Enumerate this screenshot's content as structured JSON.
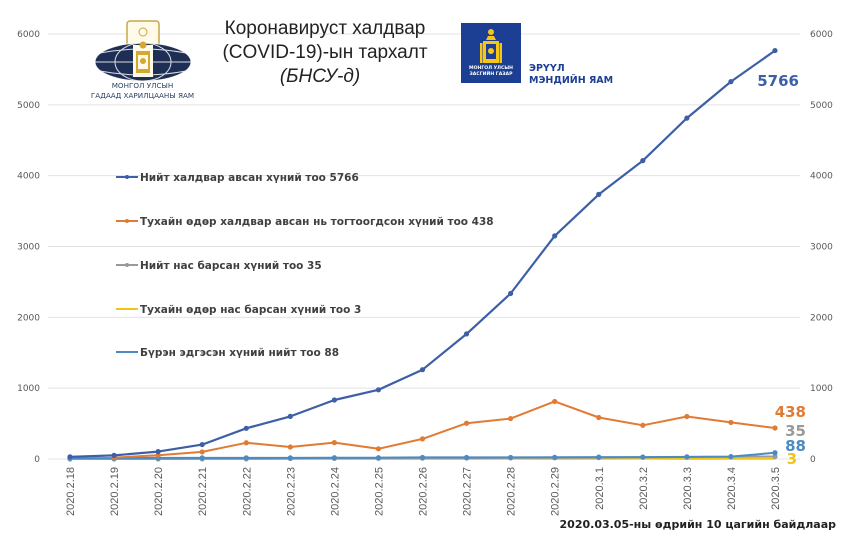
{
  "header": {
    "title_line1": "Коронавируст халдвар",
    "title_line2": "(COVID-19)-ын тархалт",
    "title_line3": "(БНСУ-д)",
    "logo_left": {
      "line1": "МОНГОЛ УЛСЫН",
      "line2": "ГАДААД ХАРИЛЦААНЫ ЯАМ"
    },
    "logo_right": {
      "box_line1": "МОНГОЛ УЛСЫН",
      "box_line2": "ЗАСГИЙН ГАЗАР",
      "name_line1": "ЭРҮҮЛ",
      "name_line2": "МЭНДИЙН ЯАМ"
    }
  },
  "footnote": "2020.03.05-ны өдрийн 10 цагийн байдлаар",
  "chart_data": {
    "type": "line",
    "title": "Коронавируст халдвар (COVID-19)-ын тархалт (БНСУ-д)",
    "xlabel": "",
    "ylabel": "",
    "ylim": [
      0,
      6000
    ],
    "y_ticks": [
      0,
      1000,
      2000,
      3000,
      4000,
      5000,
      6000
    ],
    "secondary_y_ticks": [
      0,
      1000,
      2000,
      3000,
      4000,
      5000,
      6000
    ],
    "grid": true,
    "legend_position": "left-center",
    "categories": [
      "2020.2.18",
      "2020.2.19",
      "2020.2.20",
      "2020.2.21",
      "2020.2.22",
      "2020.2.23",
      "2020.2.24",
      "2020.2.25",
      "2020.2.26",
      "2020.2.27",
      "2020.2.28",
      "2020.2.29",
      "2020.3.1",
      "2020.3.2",
      "2020.3.3",
      "2020.3.4",
      "2020.3.5"
    ],
    "series": [
      {
        "name": "Нийт халдвар авсан хүний тоо 5766",
        "color": "#3d5fa8",
        "end_label": "5766",
        "values": [
          31,
          51,
          104,
          204,
          433,
          602,
          833,
          977,
          1261,
          1766,
          2337,
          3150,
          3736,
          4212,
          4812,
          5328,
          5766
        ]
      },
      {
        "name": "Тухайн өдөр халдвар авсан нь тогтоогдсон хүний тоо 438",
        "color": "#e07b35",
        "end_label": "438",
        "values": [
          null,
          20,
          53,
          100,
          229,
          169,
          231,
          144,
          284,
          505,
          571,
          813,
          586,
          476,
          600,
          516,
          438
        ]
      },
      {
        "name": "Нийт нас барсан хүний тоо 35",
        "color": "#9a9a9a",
        "end_label": "35",
        "values": [
          0,
          0,
          0,
          1,
          2,
          6,
          8,
          10,
          12,
          13,
          16,
          17,
          20,
          26,
          28,
          32,
          35
        ]
      },
      {
        "name": "Тухайн өдөр нас барсан хүний тоо 3",
        "color": "#f2c318",
        "end_label": "3",
        "values": [
          0,
          0,
          0,
          1,
          1,
          4,
          2,
          2,
          2,
          1,
          3,
          1,
          3,
          6,
          2,
          4,
          3
        ]
      },
      {
        "name": "Бүрэн эдгэсэн хүний нийт тоо 88",
        "color": "#4b8bc2",
        "end_label": "88",
        "values": [
          12,
          12,
          16,
          16,
          16,
          16,
          18,
          18,
          22,
          22,
          22,
          24,
          27,
          27,
          30,
          34,
          88
        ]
      }
    ]
  }
}
